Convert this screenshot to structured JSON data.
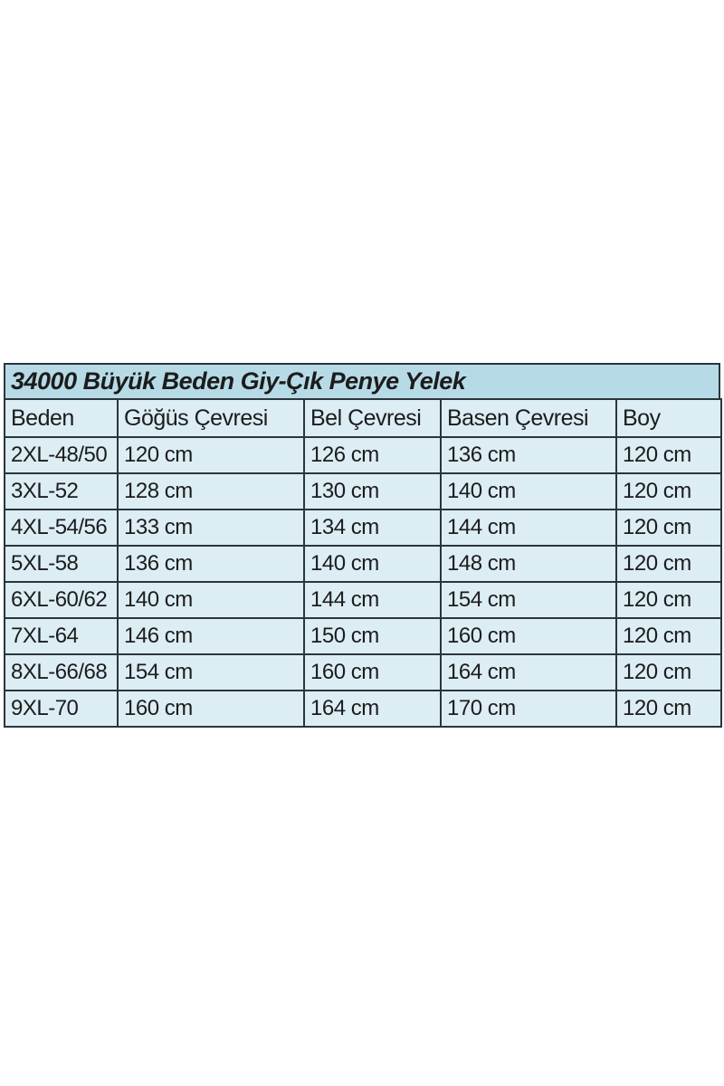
{
  "size_chart": {
    "title": "34000 Büyük Beden Giy-Çık Penye Yelek",
    "columns": [
      "Beden",
      "Göğüs Çevresi",
      "Bel Çevresi",
      "Basen Çevresi",
      "Boy"
    ],
    "rows": [
      [
        "2XL-48/50",
        "120 cm",
        "126 cm",
        "136 cm",
        "120 cm"
      ],
      [
        "3XL-52",
        "128 cm",
        "130 cm",
        "140 cm",
        "120 cm"
      ],
      [
        "4XL-54/56",
        "133 cm",
        "134 cm",
        "144 cm",
        "120 cm"
      ],
      [
        "5XL-58",
        "136 cm",
        "140 cm",
        "148 cm",
        "120 cm"
      ],
      [
        "6XL-60/62",
        "140 cm",
        "144 cm",
        "154 cm",
        "120 cm"
      ],
      [
        "7XL-64",
        "146 cm",
        "150 cm",
        "160 cm",
        "120 cm"
      ],
      [
        "8XL-66/68",
        "154 cm",
        "160 cm",
        "164 cm",
        "120 cm"
      ],
      [
        "9XL-70",
        "160 cm",
        "164 cm",
        "170 cm",
        "120 cm"
      ]
    ],
    "colors": {
      "title_background": "#b7dbe6",
      "cell_background": "#dcedf4",
      "border": "#2b353b",
      "text": "#1c1c1c",
      "page_background": "#ffffff"
    }
  }
}
